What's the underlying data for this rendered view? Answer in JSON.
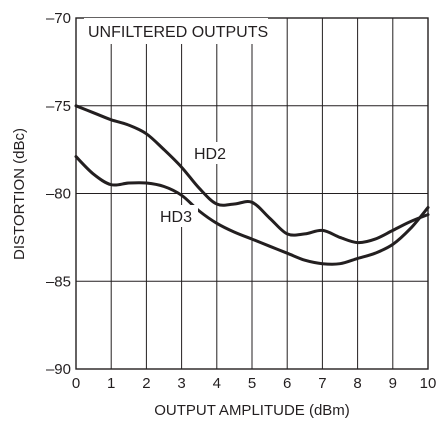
{
  "chart_data": {
    "type": "line",
    "title": "",
    "annotation": "UNFILTERED OUTPUTS",
    "xlabel": "OUTPUT AMPLITUDE (dBm)",
    "ylabel": "DISTORTION (dBc)",
    "xlim": [
      0,
      10
    ],
    "ylim": [
      -90,
      -70
    ],
    "xticks": [
      "0",
      "1",
      "2",
      "3",
      "4",
      "5",
      "6",
      "7",
      "8",
      "9",
      "10"
    ],
    "yticks": [
      "–90",
      "–85",
      "–80",
      "–75",
      "–70"
    ],
    "grid": true,
    "line_color": "#231f20",
    "series": [
      {
        "name": "HD2",
        "x": [
          0,
          0.5,
          1,
          1.5,
          2,
          2.5,
          3,
          3.5,
          4,
          4.5,
          5,
          5.5,
          6,
          6.5,
          7,
          7.5,
          8,
          8.5,
          9,
          9.5,
          10
        ],
        "y": [
          -75.0,
          -75.4,
          -75.8,
          -76.1,
          -76.6,
          -77.5,
          -78.5,
          -79.7,
          -80.6,
          -80.6,
          -80.5,
          -81.4,
          -82.3,
          -82.3,
          -82.1,
          -82.5,
          -82.8,
          -82.6,
          -82.1,
          -81.6,
          -81.2
        ]
      },
      {
        "name": "HD3",
        "x": [
          0,
          0.5,
          1,
          1.5,
          2,
          2.5,
          3,
          3.5,
          4,
          4.5,
          5,
          5.5,
          6,
          6.5,
          7,
          7.5,
          8,
          8.5,
          9,
          9.5,
          10
        ],
        "y": [
          -77.9,
          -78.9,
          -79.5,
          -79.4,
          -79.4,
          -79.6,
          -80.1,
          -81.0,
          -81.7,
          -82.2,
          -82.6,
          -83.0,
          -83.4,
          -83.8,
          -84.0,
          -84.0,
          -83.7,
          -83.4,
          -82.9,
          -82.0,
          -80.8
        ]
      }
    ]
  }
}
